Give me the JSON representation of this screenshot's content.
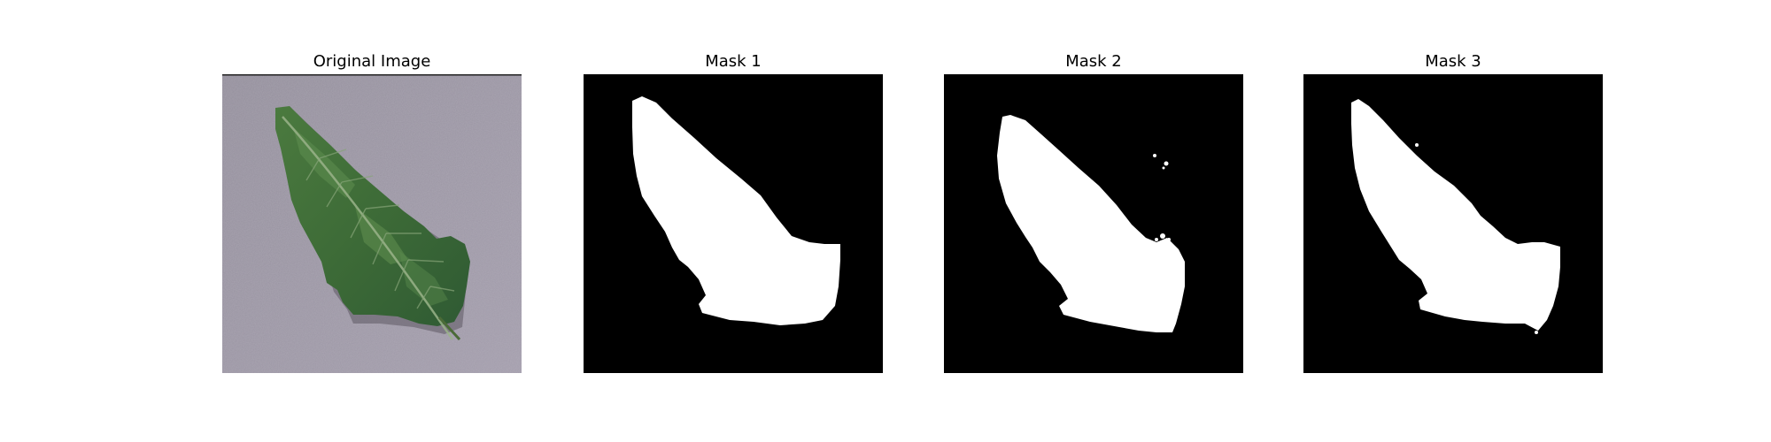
{
  "panels": [
    {
      "title": "Original Image",
      "kind": "photo",
      "subject": "leaf-photo"
    },
    {
      "title": "Mask 1",
      "kind": "mask",
      "subject": "leaf-mask"
    },
    {
      "title": "Mask 2",
      "kind": "mask",
      "subject": "leaf-mask"
    },
    {
      "title": "Mask 3",
      "kind": "mask",
      "subject": "leaf-mask"
    }
  ],
  "colors": {
    "background": "#ffffff",
    "photo_background": "#8e8a96",
    "leaf_dark": "#2f5a2f",
    "leaf_light": "#5b8a4c",
    "mask_foreground": "#ffffff",
    "mask_background": "#000000"
  }
}
